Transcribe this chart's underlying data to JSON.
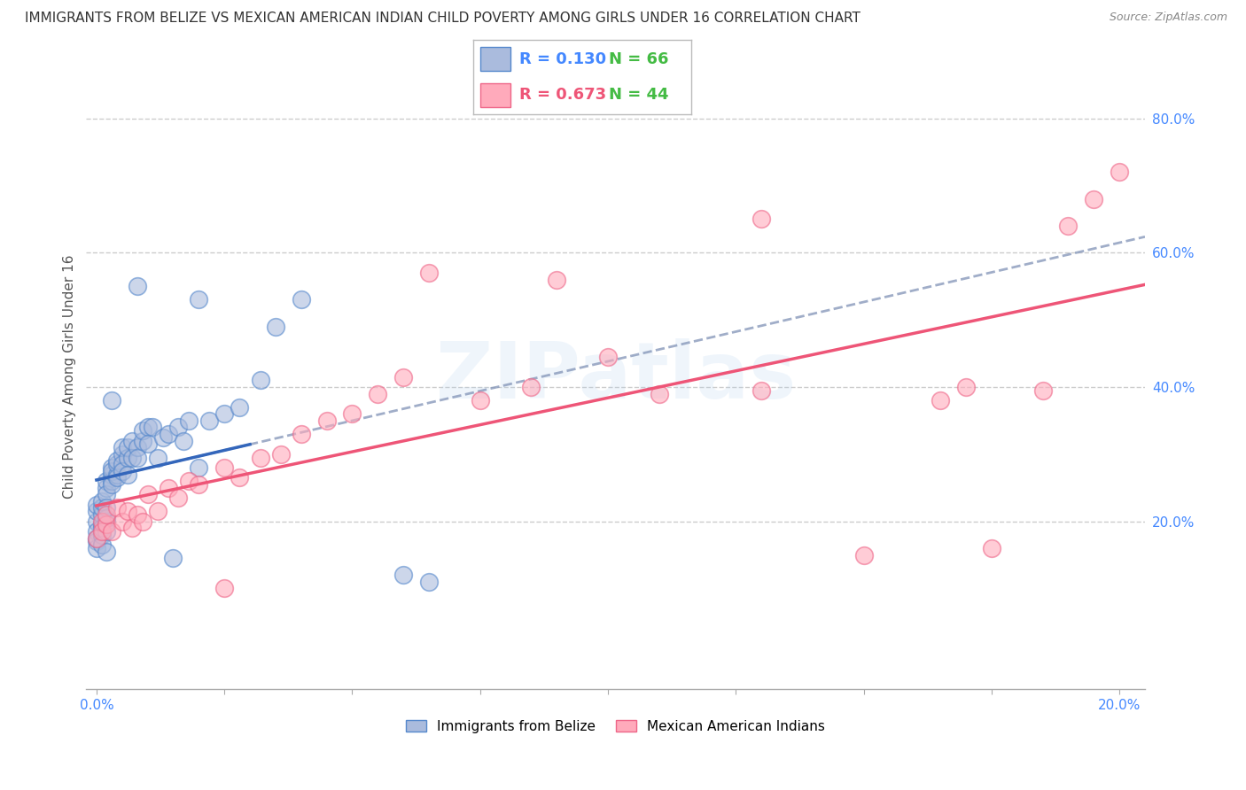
{
  "title": "IMMIGRANTS FROM BELIZE VS MEXICAN AMERICAN INDIAN CHILD POVERTY AMONG GIRLS UNDER 16 CORRELATION CHART",
  "source": "Source: ZipAtlas.com",
  "ylabel": "Child Poverty Among Girls Under 16",
  "ytick_labels": [
    "20.0%",
    "40.0%",
    "60.0%",
    "80.0%"
  ],
  "ytick_positions": [
    0.2,
    0.4,
    0.6,
    0.8
  ],
  "xlim": [
    -0.002,
    0.205
  ],
  "ylim": [
    -0.05,
    0.88
  ],
  "grid_color": "#cccccc",
  "watermark": "ZIPatlas",
  "legend_R1": "R = 0.130",
  "legend_N1": "N = 66",
  "legend_R2": "R = 0.673",
  "legend_N2": "N = 44",
  "color_belize_fill": "#aabbdd",
  "color_belize_edge": "#5588cc",
  "color_belize_line": "#3366bb",
  "color_mexican_fill": "#ffaabb",
  "color_mexican_edge": "#ee6688",
  "color_mexican_line": "#ee5577",
  "color_trendline": "#8899bb",
  "background_color": "#ffffff",
  "title_fontsize": 11,
  "axis_label_fontsize": 11,
  "tick_fontsize": 11,
  "legend_fontsize": 13,
  "belize_x": [
    0.0,
    0.0,
    0.0,
    0.0,
    0.0,
    0.0,
    0.0,
    0.001,
    0.001,
    0.001,
    0.001,
    0.001,
    0.001,
    0.001,
    0.002,
    0.002,
    0.002,
    0.002,
    0.002,
    0.002,
    0.002,
    0.003,
    0.003,
    0.003,
    0.003,
    0.003,
    0.004,
    0.004,
    0.004,
    0.004,
    0.005,
    0.005,
    0.005,
    0.005,
    0.006,
    0.006,
    0.006,
    0.007,
    0.007,
    0.008,
    0.008,
    0.009,
    0.009,
    0.01,
    0.01,
    0.011,
    0.012,
    0.013,
    0.014,
    0.015,
    0.016,
    0.017,
    0.018,
    0.02,
    0.022,
    0.025,
    0.028,
    0.032,
    0.035,
    0.04,
    0.06,
    0.065,
    0.02,
    0.008,
    0.003,
    0.002
  ],
  "belize_y": [
    0.2,
    0.185,
    0.17,
    0.16,
    0.175,
    0.215,
    0.225,
    0.195,
    0.18,
    0.21,
    0.22,
    0.19,
    0.23,
    0.165,
    0.2,
    0.185,
    0.205,
    0.25,
    0.26,
    0.24,
    0.22,
    0.27,
    0.26,
    0.28,
    0.255,
    0.275,
    0.27,
    0.285,
    0.29,
    0.265,
    0.3,
    0.285,
    0.275,
    0.31,
    0.295,
    0.27,
    0.31,
    0.32,
    0.295,
    0.31,
    0.295,
    0.32,
    0.335,
    0.34,
    0.315,
    0.34,
    0.295,
    0.325,
    0.33,
    0.145,
    0.34,
    0.32,
    0.35,
    0.28,
    0.35,
    0.36,
    0.37,
    0.41,
    0.49,
    0.53,
    0.12,
    0.11,
    0.53,
    0.55,
    0.38,
    0.155
  ],
  "mexican_x": [
    0.0,
    0.001,
    0.001,
    0.002,
    0.002,
    0.003,
    0.004,
    0.005,
    0.006,
    0.007,
    0.008,
    0.009,
    0.01,
    0.012,
    0.014,
    0.016,
    0.018,
    0.02,
    0.025,
    0.028,
    0.032,
    0.036,
    0.04,
    0.045,
    0.05,
    0.055,
    0.06,
    0.065,
    0.075,
    0.085,
    0.09,
    0.1,
    0.11,
    0.13,
    0.15,
    0.165,
    0.17,
    0.175,
    0.185,
    0.19,
    0.195,
    0.2,
    0.025,
    0.13
  ],
  "mexican_y": [
    0.175,
    0.2,
    0.185,
    0.195,
    0.21,
    0.185,
    0.22,
    0.2,
    0.215,
    0.19,
    0.21,
    0.2,
    0.24,
    0.215,
    0.25,
    0.235,
    0.26,
    0.255,
    0.28,
    0.265,
    0.295,
    0.3,
    0.33,
    0.35,
    0.36,
    0.39,
    0.415,
    0.57,
    0.38,
    0.4,
    0.56,
    0.445,
    0.39,
    0.395,
    0.15,
    0.38,
    0.4,
    0.16,
    0.395,
    0.64,
    0.68,
    0.72,
    0.1,
    0.65
  ]
}
